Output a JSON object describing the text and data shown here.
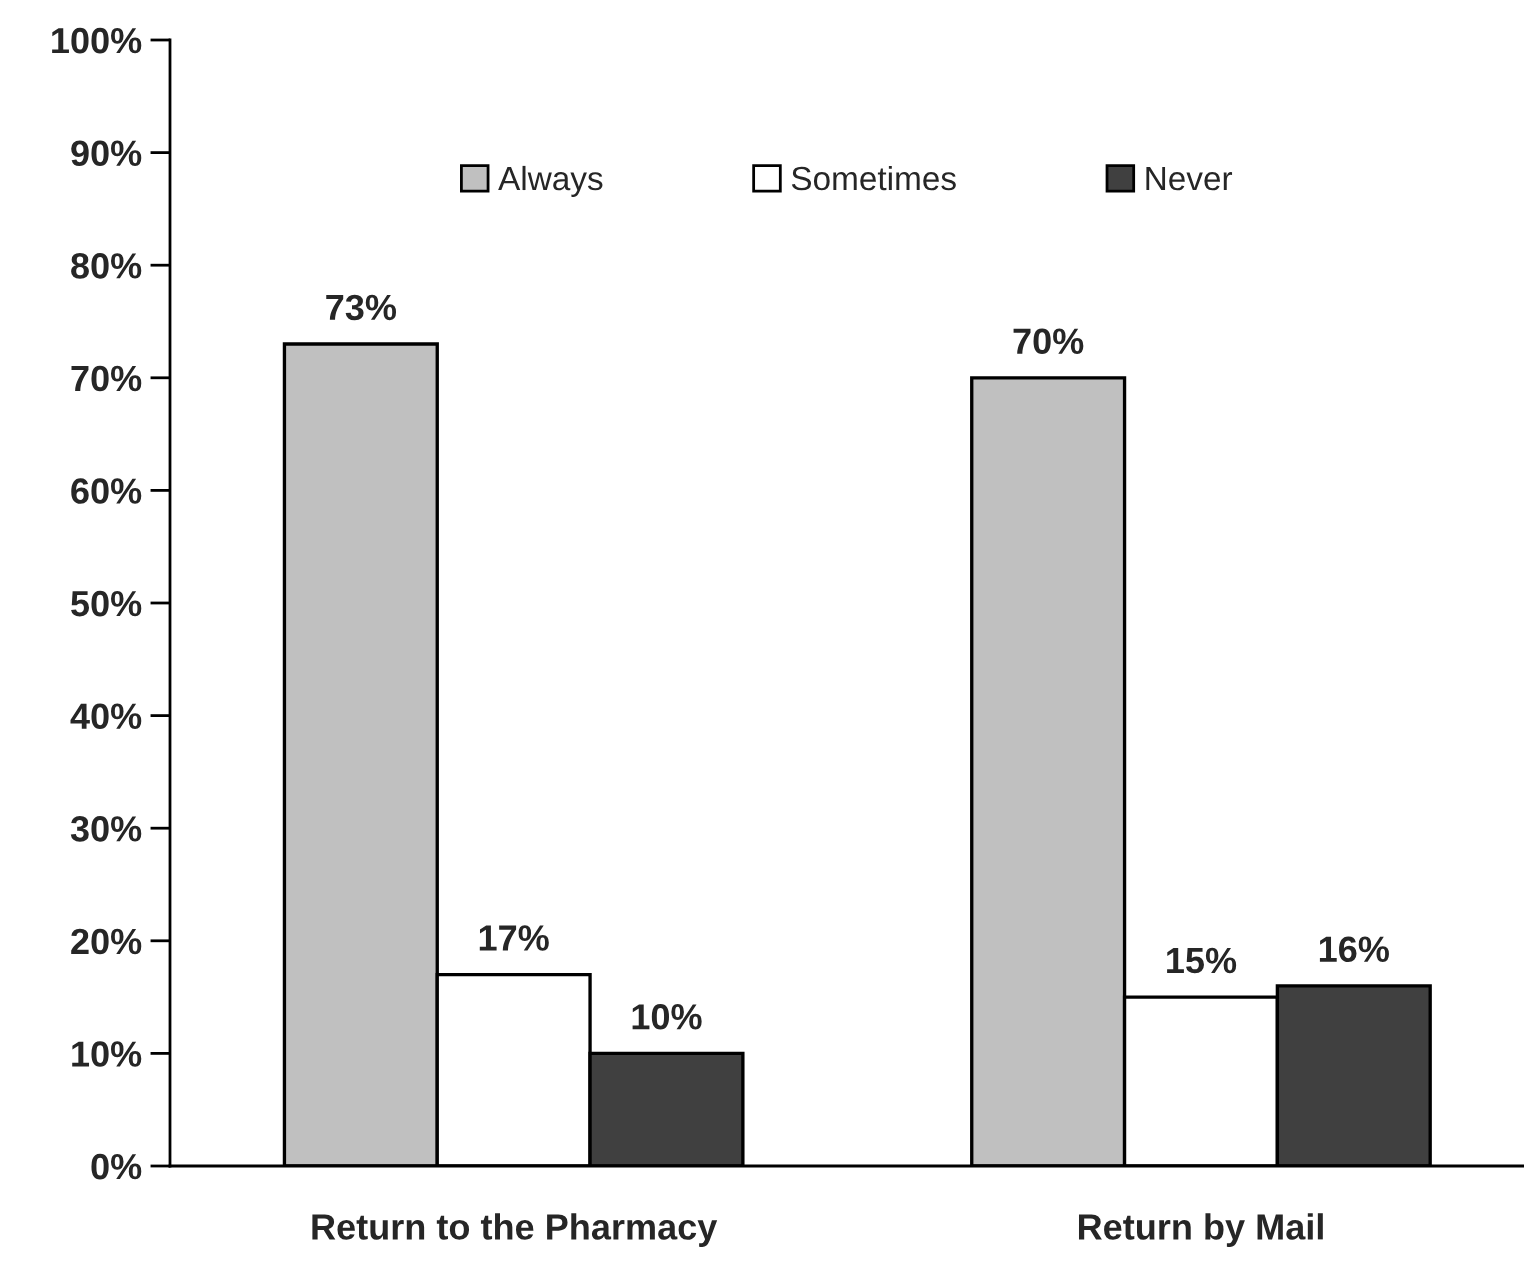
{
  "chart_data": {
    "type": "bar",
    "categories": [
      "Return to the Pharmacy",
      "Return by Mail"
    ],
    "series": [
      {
        "name": "Always",
        "color": "#c0c0c0",
        "values": [
          73,
          70
        ],
        "value_labels": [
          "73%",
          "70%"
        ]
      },
      {
        "name": "Sometimes",
        "color": "#ffffff",
        "values": [
          17,
          15
        ],
        "value_labels": [
          "17%",
          "15%"
        ]
      },
      {
        "name": "Never",
        "color": "#404040",
        "values": [
          10,
          16
        ],
        "value_labels": [
          "10%",
          "16%"
        ]
      }
    ],
    "ylim": [
      0,
      100
    ],
    "yticks": [
      {
        "value": 0,
        "label": "0%"
      },
      {
        "value": 10,
        "label": "10%"
      },
      {
        "value": 20,
        "label": "20%"
      },
      {
        "value": 30,
        "label": "30%"
      },
      {
        "value": 40,
        "label": "40%"
      },
      {
        "value": 50,
        "label": "50%"
      },
      {
        "value": 60,
        "label": "60%"
      },
      {
        "value": 70,
        "label": "70%"
      },
      {
        "value": 80,
        "label": "80%"
      },
      {
        "value": 90,
        "label": "90%"
      },
      {
        "value": 100,
        "label": "100%"
      }
    ],
    "legend": "top"
  }
}
